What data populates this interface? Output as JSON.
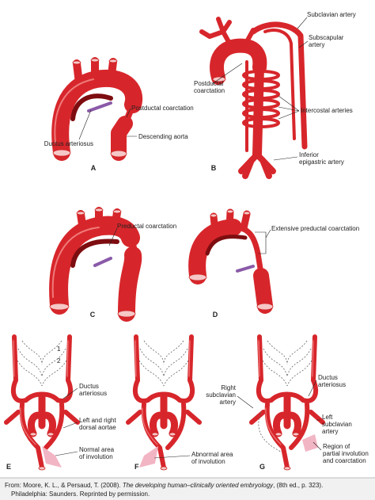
{
  "panel_a": {
    "letter": "A",
    "postductal_coarctation": "Postductal coarctation",
    "ductus_arteriosus": "Ductus arteriosus",
    "descending_aorta": "Descending aorta"
  },
  "panel_b": {
    "letter": "B",
    "subclavian_artery": "Subclavian artery",
    "subscapular_artery": [
      "Subscapular",
      "artery"
    ],
    "postductal_coarctation": [
      "Postductal",
      "coarctation"
    ],
    "intercostal_arteries": "Intercostal arteries",
    "inferior_epigastric_artery": [
      "Inferior",
      "epigastric artery"
    ]
  },
  "panel_c": {
    "letter": "C",
    "preductal_coarctation": "Preductal coarctation"
  },
  "panel_d": {
    "letter": "D",
    "extensive_preductal_coarctation": "Extensive preductal coarctation"
  },
  "panel_e": {
    "letter": "E",
    "arch_numbers": [
      "1",
      "2"
    ],
    "ductus_arteriosus": [
      "Ductus",
      "arteriosus"
    ],
    "dorsal_aortae": [
      "Left and right",
      "dorsal aortae"
    ],
    "normal_involution": [
      "Normal area",
      "of involution"
    ]
  },
  "panel_f": {
    "letter": "F",
    "abnormal_involution": [
      "Abnormal area",
      "of involution"
    ]
  },
  "panel_g": {
    "letter": "G",
    "ductus_arteriosus": [
      "Ductus",
      "arteriosus"
    ],
    "right_subclavian_artery": [
      "Right",
      "subclavian",
      "artery"
    ],
    "left_subclavian_artery": [
      "Left",
      "subclavian",
      "artery"
    ],
    "partial_involution": [
      "Region of",
      "partial involution",
      "and coarctation"
    ]
  },
  "footer": {
    "source_prefix": "From: Moore, K. L., & Persaud, T. (2008). ",
    "book_title": "The developing human–clinically oriented embryology",
    "source_suffix": ", (8th ed., p. 323).",
    "line2": "Philadelphia: Saunders. Reprinted by permission."
  }
}
